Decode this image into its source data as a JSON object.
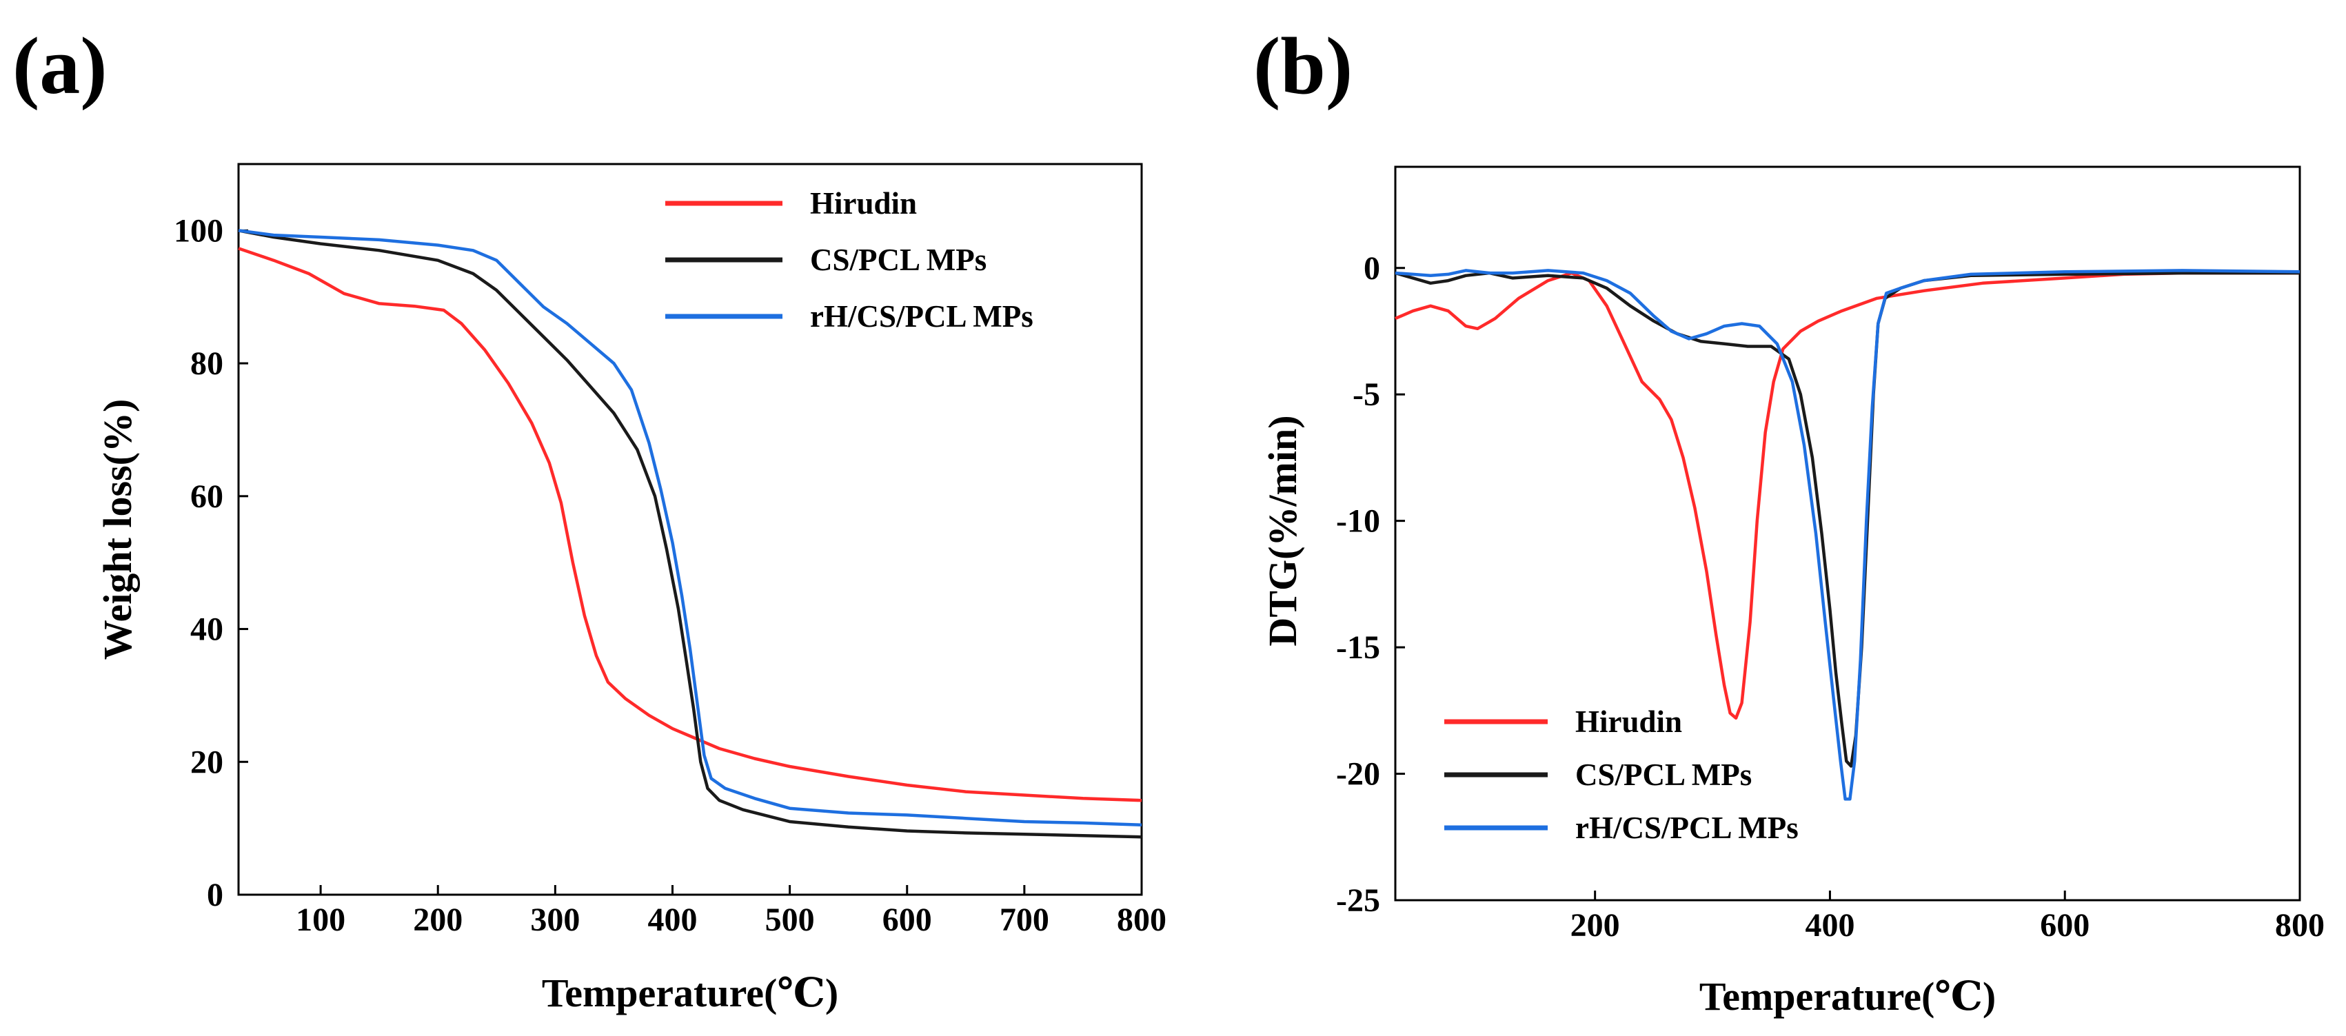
{
  "chart_data": [
    {
      "type": "line",
      "panel_label": "(a)",
      "xlabel": "Temperature(℃)",
      "ylabel": "Weight loss(%)",
      "xlim": [
        30,
        800
      ],
      "ylim": [
        0,
        110
      ],
      "xticks": [
        100,
        200,
        300,
        400,
        500,
        600,
        700,
        800
      ],
      "yticks": [
        0,
        20,
        40,
        60,
        80,
        100
      ],
      "legend_position": "top-right",
      "series": [
        {
          "name": "Hirudin",
          "color": "#ff2a2a",
          "points": [
            [
              30,
              97.3
            ],
            [
              60,
              95.5
            ],
            [
              90,
              93.5
            ],
            [
              120,
              90.5
            ],
            [
              150,
              89
            ],
            [
              180,
              88.6
            ],
            [
              205,
              88
            ],
            [
              220,
              86
            ],
            [
              240,
              82
            ],
            [
              260,
              77
            ],
            [
              280,
              71
            ],
            [
              295,
              65
            ],
            [
              305,
              59
            ],
            [
              315,
              50
            ],
            [
              325,
              42
            ],
            [
              335,
              36
            ],
            [
              345,
              32
            ],
            [
              360,
              29.5
            ],
            [
              380,
              27
            ],
            [
              400,
              25
            ],
            [
              420,
              23.5
            ],
            [
              440,
              22
            ],
            [
              470,
              20.5
            ],
            [
              500,
              19.3
            ],
            [
              550,
              17.8
            ],
            [
              600,
              16.5
            ],
            [
              650,
              15.5
            ],
            [
              700,
              15
            ],
            [
              750,
              14.5
            ],
            [
              800,
              14.2
            ]
          ]
        },
        {
          "name": "CS/PCL MPs",
          "color": "#1a1a1a",
          "points": [
            [
              30,
              100
            ],
            [
              60,
              99
            ],
            [
              100,
              98
            ],
            [
              150,
              97
            ],
            [
              200,
              95.5
            ],
            [
              230,
              93.5
            ],
            [
              250,
              91
            ],
            [
              270,
              87.5
            ],
            [
              290,
              84
            ],
            [
              310,
              80.5
            ],
            [
              330,
              76.5
            ],
            [
              350,
              72.5
            ],
            [
              370,
              67
            ],
            [
              385,
              60
            ],
            [
              395,
              52
            ],
            [
              405,
              43
            ],
            [
              412,
              35
            ],
            [
              418,
              28
            ],
            [
              424,
              20
            ],
            [
              430,
              16
            ],
            [
              440,
              14.2
            ],
            [
              460,
              12.8
            ],
            [
              500,
              11
            ],
            [
              550,
              10.2
            ],
            [
              600,
              9.6
            ],
            [
              650,
              9.3
            ],
            [
              700,
              9.1
            ],
            [
              750,
              8.9
            ],
            [
              800,
              8.7
            ]
          ]
        },
        {
          "name": "rH/CS/PCL MPs",
          "color": "#1e6fe0",
          "points": [
            [
              30,
              100
            ],
            [
              60,
              99.3
            ],
            [
              100,
              99
            ],
            [
              150,
              98.6
            ],
            [
              200,
              97.8
            ],
            [
              230,
              97
            ],
            [
              250,
              95.5
            ],
            [
              270,
              92
            ],
            [
              290,
              88.5
            ],
            [
              310,
              86
            ],
            [
              330,
              83
            ],
            [
              350,
              80
            ],
            [
              365,
              76
            ],
            [
              380,
              68
            ],
            [
              390,
              61
            ],
            [
              400,
              53
            ],
            [
              408,
              45
            ],
            [
              415,
              37
            ],
            [
              421,
              29
            ],
            [
              427,
              21
            ],
            [
              433,
              17.5
            ],
            [
              445,
              16
            ],
            [
              470,
              14.5
            ],
            [
              500,
              13
            ],
            [
              550,
              12.3
            ],
            [
              600,
              12
            ],
            [
              650,
              11.5
            ],
            [
              700,
              11
            ],
            [
              750,
              10.8
            ],
            [
              800,
              10.5
            ]
          ]
        }
      ]
    },
    {
      "type": "line",
      "panel_label": "(b)",
      "xlabel": "Temperature(℃)",
      "ylabel": "DTG(%/min)",
      "xlim": [
        30,
        800
      ],
      "ylim": [
        -25,
        4
      ],
      "xticks": [
        200,
        400,
        600,
        800
      ],
      "yticks": [
        0,
        -5,
        -10,
        -15,
        -20,
        -25
      ],
      "legend_position": "bottom-left",
      "series": [
        {
          "name": "Hirudin",
          "color": "#ff2a2a",
          "points": [
            [
              30,
              -2
            ],
            [
              45,
              -1.7
            ],
            [
              60,
              -1.5
            ],
            [
              75,
              -1.7
            ],
            [
              90,
              -2.3
            ],
            [
              100,
              -2.4
            ],
            [
              115,
              -2
            ],
            [
              135,
              -1.2
            ],
            [
              160,
              -0.5
            ],
            [
              180,
              -0.2
            ],
            [
              195,
              -0.5
            ],
            [
              210,
              -1.5
            ],
            [
              225,
              -3
            ],
            [
              240,
              -4.5
            ],
            [
              255,
              -5.2
            ],
            [
              265,
              -6
            ],
            [
              275,
              -7.5
            ],
            [
              285,
              -9.5
            ],
            [
              295,
              -12
            ],
            [
              303,
              -14.5
            ],
            [
              310,
              -16.5
            ],
            [
              315,
              -17.6
            ],
            [
              320,
              -17.8
            ],
            [
              325,
              -17.2
            ],
            [
              332,
              -14
            ],
            [
              338,
              -10
            ],
            [
              345,
              -6.5
            ],
            [
              352,
              -4.5
            ],
            [
              360,
              -3.2
            ],
            [
              375,
              -2.5
            ],
            [
              390,
              -2.1
            ],
            [
              410,
              -1.7
            ],
            [
              440,
              -1.2
            ],
            [
              480,
              -0.9
            ],
            [
              530,
              -0.6
            ],
            [
              600,
              -0.4
            ],
            [
              650,
              -0.25
            ],
            [
              700,
              -0.2
            ],
            [
              800,
              -0.2
            ]
          ]
        },
        {
          "name": "CS/PCL MPs",
          "color": "#1a1a1a",
          "points": [
            [
              30,
              -0.2
            ],
            [
              45,
              -0.4
            ],
            [
              60,
              -0.6
            ],
            [
              75,
              -0.5
            ],
            [
              90,
              -0.3
            ],
            [
              110,
              -0.2
            ],
            [
              130,
              -0.4
            ],
            [
              160,
              -0.3
            ],
            [
              190,
              -0.4
            ],
            [
              210,
              -0.8
            ],
            [
              230,
              -1.5
            ],
            [
              250,
              -2.1
            ],
            [
              270,
              -2.6
            ],
            [
              290,
              -2.9
            ],
            [
              310,
              -3
            ],
            [
              330,
              -3.1
            ],
            [
              350,
              -3.1
            ],
            [
              365,
              -3.6
            ],
            [
              375,
              -5
            ],
            [
              385,
              -7.5
            ],
            [
              393,
              -10.5
            ],
            [
              400,
              -13.5
            ],
            [
              405,
              -16
            ],
            [
              410,
              -18
            ],
            [
              414,
              -19.5
            ],
            [
              418,
              -19.7
            ],
            [
              422,
              -18.5
            ],
            [
              427,
              -15
            ],
            [
              432,
              -10
            ],
            [
              437,
              -5
            ],
            [
              441,
              -2.2
            ],
            [
              447,
              -1.2
            ],
            [
              460,
              -0.8
            ],
            [
              480,
              -0.5
            ],
            [
              520,
              -0.3
            ],
            [
              600,
              -0.25
            ],
            [
              700,
              -0.2
            ],
            [
              800,
              -0.2
            ]
          ]
        },
        {
          "name": "rH/CS/PCL MPs",
          "color": "#1e6fe0",
          "points": [
            [
              30,
              -0.2
            ],
            [
              45,
              -0.25
            ],
            [
              60,
              -0.3
            ],
            [
              75,
              -0.25
            ],
            [
              90,
              -0.1
            ],
            [
              110,
              -0.2
            ],
            [
              130,
              -0.2
            ],
            [
              160,
              -0.1
            ],
            [
              190,
              -0.2
            ],
            [
              210,
              -0.5
            ],
            [
              230,
              -1
            ],
            [
              250,
              -1.9
            ],
            [
              265,
              -2.5
            ],
            [
              280,
              -2.8
            ],
            [
              295,
              -2.6
            ],
            [
              310,
              -2.3
            ],
            [
              325,
              -2.2
            ],
            [
              340,
              -2.3
            ],
            [
              355,
              -3
            ],
            [
              368,
              -4.5
            ],
            [
              378,
              -7
            ],
            [
              388,
              -10.5
            ],
            [
              396,
              -14
            ],
            [
              403,
              -17
            ],
            [
              409,
              -19.5
            ],
            [
              413,
              -21
            ],
            [
              417,
              -21
            ],
            [
              421,
              -19.5
            ],
            [
              426,
              -15.5
            ],
            [
              431,
              -10
            ],
            [
              436,
              -5.5
            ],
            [
              441,
              -2.2
            ],
            [
              448,
              -1
            ],
            [
              460,
              -0.8
            ],
            [
              480,
              -0.5
            ],
            [
              520,
              -0.25
            ],
            [
              600,
              -0.15
            ],
            [
              700,
              -0.1
            ],
            [
              800,
              -0.15
            ]
          ]
        }
      ]
    }
  ]
}
